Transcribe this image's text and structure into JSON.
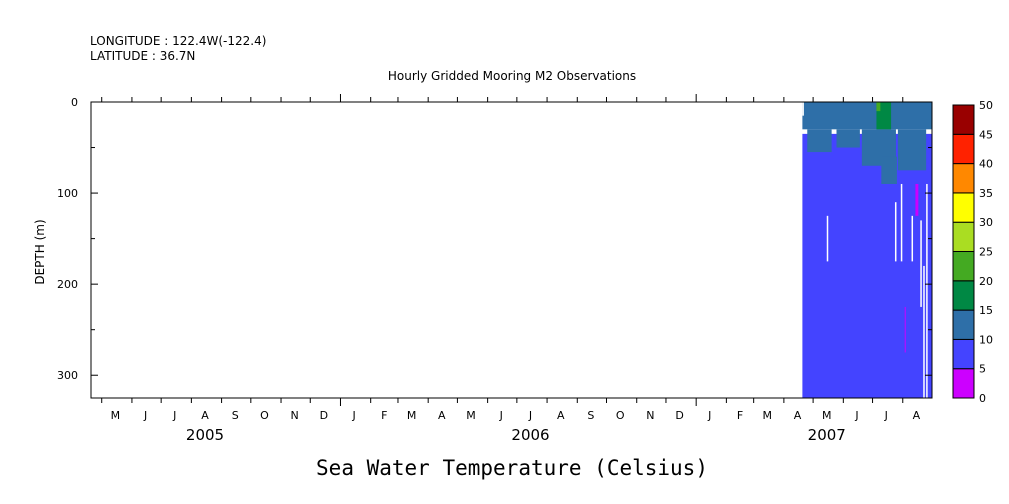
{
  "header": {
    "longitude": "LONGITUDE : 122.4W(-122.4)",
    "latitude": "LATITUDE : 36.7N"
  },
  "chart_data": {
    "type": "heatmap",
    "title": "Hourly Gridded Mooring M2 Observations",
    "xlabel": "",
    "ylabel": "DEPTH (m)",
    "variable_label": "Sea Water Temperature (Celsius)",
    "x_range": [
      "2005-04-20",
      "2007-08-31"
    ],
    "ylim": [
      325,
      0
    ],
    "y_ticks": [
      0,
      100,
      200,
      300
    ],
    "month_labels": [
      {
        "label": "M",
        "date": "2005-05-15"
      },
      {
        "label": "J",
        "date": "2005-06-15"
      },
      {
        "label": "J",
        "date": "2005-07-15"
      },
      {
        "label": "A",
        "date": "2005-08-15"
      },
      {
        "label": "S",
        "date": "2005-09-15"
      },
      {
        "label": "O",
        "date": "2005-10-15"
      },
      {
        "label": "N",
        "date": "2005-11-15"
      },
      {
        "label": "D",
        "date": "2005-12-15"
      },
      {
        "label": "J",
        "date": "2006-01-15"
      },
      {
        "label": "F",
        "date": "2006-02-15"
      },
      {
        "label": "M",
        "date": "2006-03-15"
      },
      {
        "label": "A",
        "date": "2006-04-15"
      },
      {
        "label": "M",
        "date": "2006-05-15"
      },
      {
        "label": "J",
        "date": "2006-06-15"
      },
      {
        "label": "J",
        "date": "2006-07-15"
      },
      {
        "label": "A",
        "date": "2006-08-15"
      },
      {
        "label": "S",
        "date": "2006-09-15"
      },
      {
        "label": "O",
        "date": "2006-10-15"
      },
      {
        "label": "N",
        "date": "2006-11-15"
      },
      {
        "label": "D",
        "date": "2006-12-15"
      },
      {
        "label": "J",
        "date": "2007-01-15"
      },
      {
        "label": "F",
        "date": "2007-02-15"
      },
      {
        "label": "M",
        "date": "2007-03-15"
      },
      {
        "label": "A",
        "date": "2007-04-15"
      },
      {
        "label": "M",
        "date": "2007-05-15"
      },
      {
        "label": "J",
        "date": "2007-06-15"
      },
      {
        "label": "J",
        "date": "2007-07-15"
      },
      {
        "label": "A",
        "date": "2007-08-15"
      }
    ],
    "year_labels": [
      {
        "label": "2005",
        "date": "2005-08-15"
      },
      {
        "label": "2006",
        "date": "2006-07-15"
      },
      {
        "label": "2007",
        "date": "2007-05-15"
      }
    ],
    "colorbar": {
      "levels": [
        0,
        5,
        10,
        15,
        20,
        25,
        30,
        35,
        40,
        45,
        50
      ],
      "colors": [
        "#cc00ff",
        "#4444ff",
        "#2e6fa8",
        "#008844",
        "#44aa22",
        "#aadd22",
        "#ffff00",
        "#ff8800",
        "#ff2200",
        "#990000"
      ]
    },
    "data_blocks": [
      {
        "x0": "2007-04-20",
        "x1": "2007-08-31",
        "d0": 35,
        "d1": 325,
        "temp_band": "5-10"
      },
      {
        "x0": "2007-04-20",
        "x1": "2007-08-31",
        "d0": 0,
        "d1": 30,
        "temp_band": "10-15"
      },
      {
        "x0": "2007-04-25",
        "x1": "2007-05-20",
        "d0": 30,
        "d1": 55,
        "temp_band": "10-15"
      },
      {
        "x0": "2007-05-25",
        "x1": "2007-06-18",
        "d0": 30,
        "d1": 50,
        "temp_band": "10-15"
      },
      {
        "x0": "2007-06-20",
        "x1": "2007-07-25",
        "d0": 30,
        "d1": 70,
        "temp_band": "10-15"
      },
      {
        "x0": "2007-07-10",
        "x1": "2007-07-26",
        "d0": 60,
        "d1": 90,
        "temp_band": "10-15"
      },
      {
        "x0": "2007-07-27",
        "x1": "2007-08-25",
        "d0": 30,
        "d1": 75,
        "temp_band": "10-15"
      },
      {
        "x0": "2007-07-05",
        "x1": "2007-07-20",
        "d0": 0,
        "d1": 30,
        "temp_band": "15-20"
      },
      {
        "x0": "2007-07-05",
        "x1": "2007-07-09",
        "d0": 0,
        "d1": 10,
        "temp_band": "20-25"
      },
      {
        "x0": "2007-08-14",
        "x1": "2007-08-17",
        "d0": 90,
        "d1": 125,
        "temp_band": "0-5"
      },
      {
        "x0": "2007-08-03",
        "x1": "2007-08-04",
        "d0": 225,
        "d1": 275,
        "temp_band": "0-5"
      }
    ],
    "gaps": [
      {
        "x0": "2007-04-20",
        "x1": "2007-04-21",
        "d0": 0,
        "d1": 15
      },
      {
        "x0": "2007-05-15",
        "x1": "2007-05-16",
        "d0": 125,
        "d1": 175
      },
      {
        "x0": "2007-07-24",
        "x1": "2007-07-25",
        "d0": 110,
        "d1": 175
      },
      {
        "x0": "2007-07-30",
        "x1": "2007-07-31",
        "d0": 90,
        "d1": 175
      },
      {
        "x0": "2007-08-10",
        "x1": "2007-08-11",
        "d0": 125,
        "d1": 175
      },
      {
        "x0": "2007-08-19",
        "x1": "2007-08-20",
        "d0": 130,
        "d1": 225
      },
      {
        "x0": "2007-08-22",
        "x1": "2007-08-23",
        "d0": 180,
        "d1": 325
      },
      {
        "x0": "2007-08-25",
        "x1": "2007-08-26",
        "d0": 90,
        "d1": 325
      }
    ]
  }
}
